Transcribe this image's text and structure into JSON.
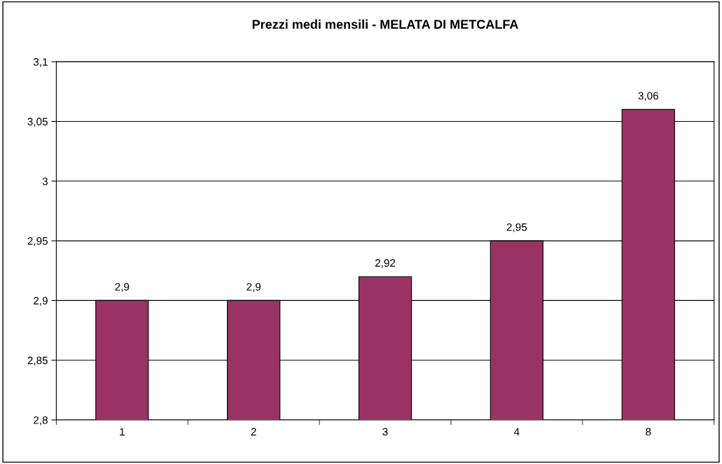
{
  "chart_data": {
    "type": "bar",
    "title": "Prezzi medi mensili - MELATA DI METCALFA",
    "categories": [
      "1",
      "2",
      "3",
      "4",
      "8"
    ],
    "values": [
      2.9,
      2.9,
      2.92,
      2.95,
      3.06
    ],
    "value_labels": [
      "2,9",
      "2,9",
      "2,92",
      "2,95",
      "3,06"
    ],
    "color": "#993366",
    "ylim": [
      2.8,
      3.1
    ],
    "yticks": [
      {
        "value": 2.8,
        "label": "2,8"
      },
      {
        "value": 2.85,
        "label": "2,85"
      },
      {
        "value": 2.9,
        "label": "2,9"
      },
      {
        "value": 2.95,
        "label": "2,95"
      },
      3,
      {
        "value": 3.05,
        "label": "3,05"
      },
      {
        "value": 3.1,
        "label": "3,1"
      }
    ],
    "grid": "y"
  }
}
